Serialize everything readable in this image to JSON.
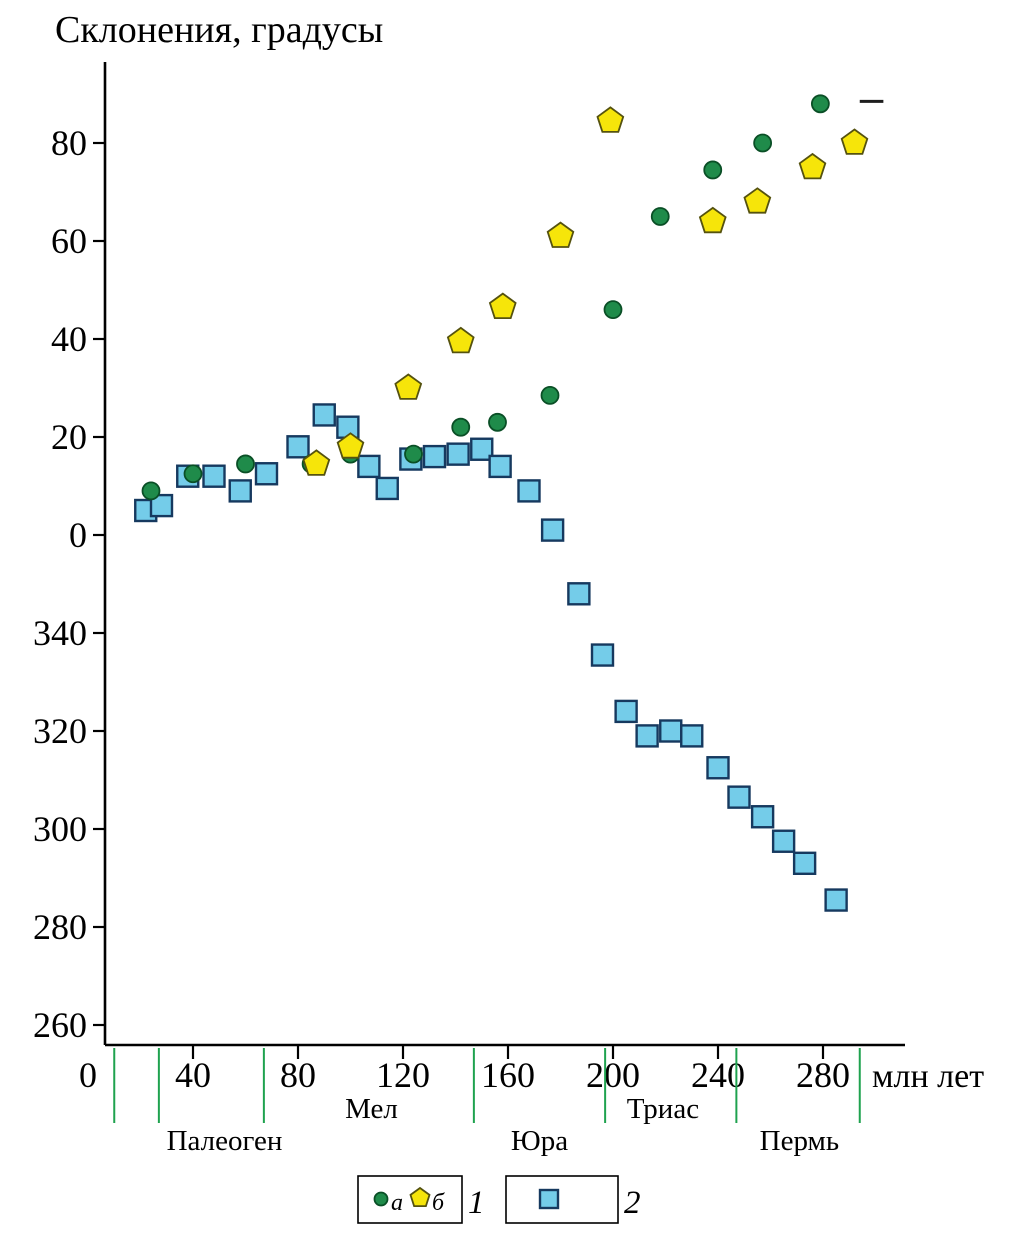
{
  "title": "Склонения, градусы",
  "legend": {
    "group1": {
      "item_a_label": "а",
      "item_b_label": "б",
      "group_label": "1"
    },
    "group2": {
      "group_label": "2"
    }
  },
  "periods": {
    "boundary_ticks_myr": [
      10,
      27,
      67,
      147,
      197,
      247,
      294
    ],
    "labels": [
      {
        "name": "Палеоген",
        "center_myr": 52,
        "row": "lower"
      },
      {
        "name": "Мел",
        "center_myr": 108,
        "row": "upper"
      },
      {
        "name": "Юра",
        "center_myr": 172,
        "row": "lower"
      },
      {
        "name": "Триас",
        "center_myr": 219,
        "row": "upper"
      },
      {
        "name": "Пермь",
        "center_myr": 271,
        "row": "lower"
      }
    ]
  },
  "colors": {
    "circle_green": "#1f8b4a",
    "pentagon_yellow": "#f6e50a",
    "square_blue": "#74cce9",
    "period_tick_green": "#1fa24f",
    "axis_black": "#000000"
  },
  "chart_data": {
    "type": "scatter",
    "title": "Склонения, градусы",
    "xlabel": "млн лет",
    "ylabel": "Склонения, градусы",
    "x_ticks_myr": [
      0,
      40,
      80,
      120,
      160,
      200,
      240,
      280
    ],
    "x_range_myr": [
      0,
      311
    ],
    "y_tick_labels_deg": [
      "80",
      "60",
      "40",
      "20",
      "0",
      "340",
      "320",
      "300",
      "280",
      "260"
    ],
    "legend_position": "bottom",
    "grid": false,
    "series": [
      {
        "name": "1а",
        "marker": "circle",
        "color": "#1f8b4a",
        "points": [
          [
            24,
            9
          ],
          [
            40,
            12.5
          ],
          [
            60,
            14.5
          ],
          [
            85,
            14.5
          ],
          [
            100,
            16.5
          ],
          [
            124,
            16.5
          ],
          [
            142,
            22
          ],
          [
            156,
            23
          ],
          [
            176,
            28.5
          ],
          [
            200,
            46
          ],
          [
            218,
            65
          ],
          [
            238,
            74.5
          ],
          [
            257,
            80
          ],
          [
            279,
            88
          ]
        ]
      },
      {
        "name": "1б",
        "marker": "pentagon",
        "color": "#f6e50a",
        "points": [
          [
            87,
            14.5
          ],
          [
            100,
            18
          ],
          [
            122,
            30
          ],
          [
            142,
            39.5
          ],
          [
            158,
            46.5
          ],
          [
            180,
            61
          ],
          [
            199,
            84.5
          ],
          [
            238,
            64
          ],
          [
            255,
            68
          ],
          [
            276,
            75
          ],
          [
            292,
            80
          ]
        ]
      },
      {
        "name": "2",
        "marker": "square",
        "color": "#74cce9",
        "points": [
          [
            22,
            5
          ],
          [
            28,
            6
          ],
          [
            38,
            12
          ],
          [
            48,
            12
          ],
          [
            58,
            9
          ],
          [
            68,
            12.5
          ],
          [
            80,
            18
          ],
          [
            90,
            24.5
          ],
          [
            99,
            22
          ],
          [
            107,
            14
          ],
          [
            114,
            9.5
          ],
          [
            123,
            15.5
          ],
          [
            132,
            16
          ],
          [
            141,
            16.5
          ],
          [
            150,
            17.5
          ],
          [
            157,
            14
          ],
          [
            168,
            9
          ],
          [
            177,
            1
          ],
          [
            187,
            348
          ],
          [
            196,
            335.5
          ],
          [
            205,
            324
          ],
          [
            213,
            319
          ],
          [
            222,
            320
          ],
          [
            230,
            319
          ],
          [
            240,
            312.5
          ],
          [
            248,
            306.5
          ],
          [
            257,
            302.5
          ],
          [
            265,
            297.5
          ],
          [
            273,
            293
          ],
          [
            285,
            285.5
          ]
        ]
      }
    ],
    "annotations": [
      {
        "type": "dash",
        "myr_from": 294,
        "myr_to": 303,
        "deg": 88.5
      }
    ]
  }
}
